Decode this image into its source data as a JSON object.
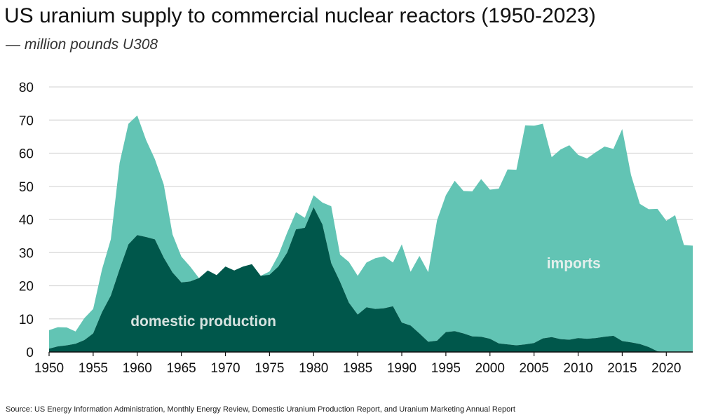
{
  "chart_data": {
    "type": "area",
    "stacked": true,
    "title": "US uranium supply to commercial nuclear reactors (1950-2023)",
    "subtitle": "— million pounds U308",
    "source": "Source: US Energy Information Administration, Monthly Energy Review, Domestic Uranium Production Report, and Uranium Marketing Annual Report",
    "xlim": [
      1950,
      2023
    ],
    "ylim": [
      0,
      80
    ],
    "x_ticks": [
      1950,
      1955,
      1960,
      1965,
      1970,
      1975,
      1980,
      1985,
      1990,
      1995,
      2000,
      2005,
      2010,
      2015,
      2020
    ],
    "y_ticks": [
      0,
      10,
      20,
      30,
      40,
      50,
      60,
      70,
      80
    ],
    "grid": true,
    "colors": {
      "domestic": "#00574b",
      "imports": "#62c4b4"
    },
    "series": [
      {
        "name": "domestic production",
        "values": [
          1.0,
          1.7,
          2.0,
          2.5,
          3.6,
          5.6,
          12.0,
          17.0,
          25.0,
          32.5,
          35.3,
          34.7,
          34.0,
          28.5,
          24.0,
          21.0,
          21.3,
          22.3,
          24.6,
          23.2,
          25.8,
          24.6,
          25.8,
          26.5,
          23.0,
          23.3,
          25.8,
          30.0,
          37.0,
          37.5,
          43.7,
          38.5,
          26.8,
          21.2,
          14.9,
          11.3,
          13.5,
          13.0,
          13.2,
          13.8,
          8.9,
          8.0,
          5.6,
          3.1,
          3.4,
          6.0,
          6.3,
          5.6,
          4.7,
          4.6,
          4.0,
          2.6,
          2.3,
          2.0,
          2.3,
          2.7,
          4.1,
          4.5,
          3.9,
          3.7,
          4.2,
          4.0,
          4.2,
          4.6,
          4.9,
          3.3,
          2.9,
          2.4,
          1.5,
          0.2,
          0.0,
          0.0,
          0.0,
          0.0
        ]
      },
      {
        "name": "imports",
        "values": [
          5.6,
          5.8,
          5.4,
          3.7,
          6.6,
          7.4,
          12.9,
          17.0,
          32.1,
          36.4,
          36.1,
          29.3,
          24.2,
          22.1,
          11.5,
          7.8,
          4.5,
          0.0,
          0.0,
          0.0,
          0.0,
          0.0,
          0.0,
          0.0,
          0.0,
          1.0,
          3.4,
          6.0,
          5.2,
          3.0,
          3.6,
          6.6,
          17.2,
          8.2,
          12.3,
          11.7,
          13.5,
          15.3,
          15.7,
          13.2,
          23.6,
          16.2,
          23.4,
          21.0,
          36.4,
          41.3,
          45.4,
          43.0,
          43.8,
          47.6,
          45.0,
          46.7,
          52.8,
          53.0,
          66.1,
          65.6,
          64.8,
          54.3,
          57.2,
          58.7,
          55.3,
          54.4,
          56.1,
          57.4,
          56.4,
          64.0,
          50.5,
          42.3,
          41.6,
          43.0,
          39.6,
          41.3,
          32.3,
          32.1
        ]
      }
    ],
    "annotations": [
      {
        "text": "domestic production",
        "x": 1967.5,
        "y": 7.8
      },
      {
        "text": "imports",
        "x": 2009.5,
        "y": 25.3
      }
    ]
  }
}
